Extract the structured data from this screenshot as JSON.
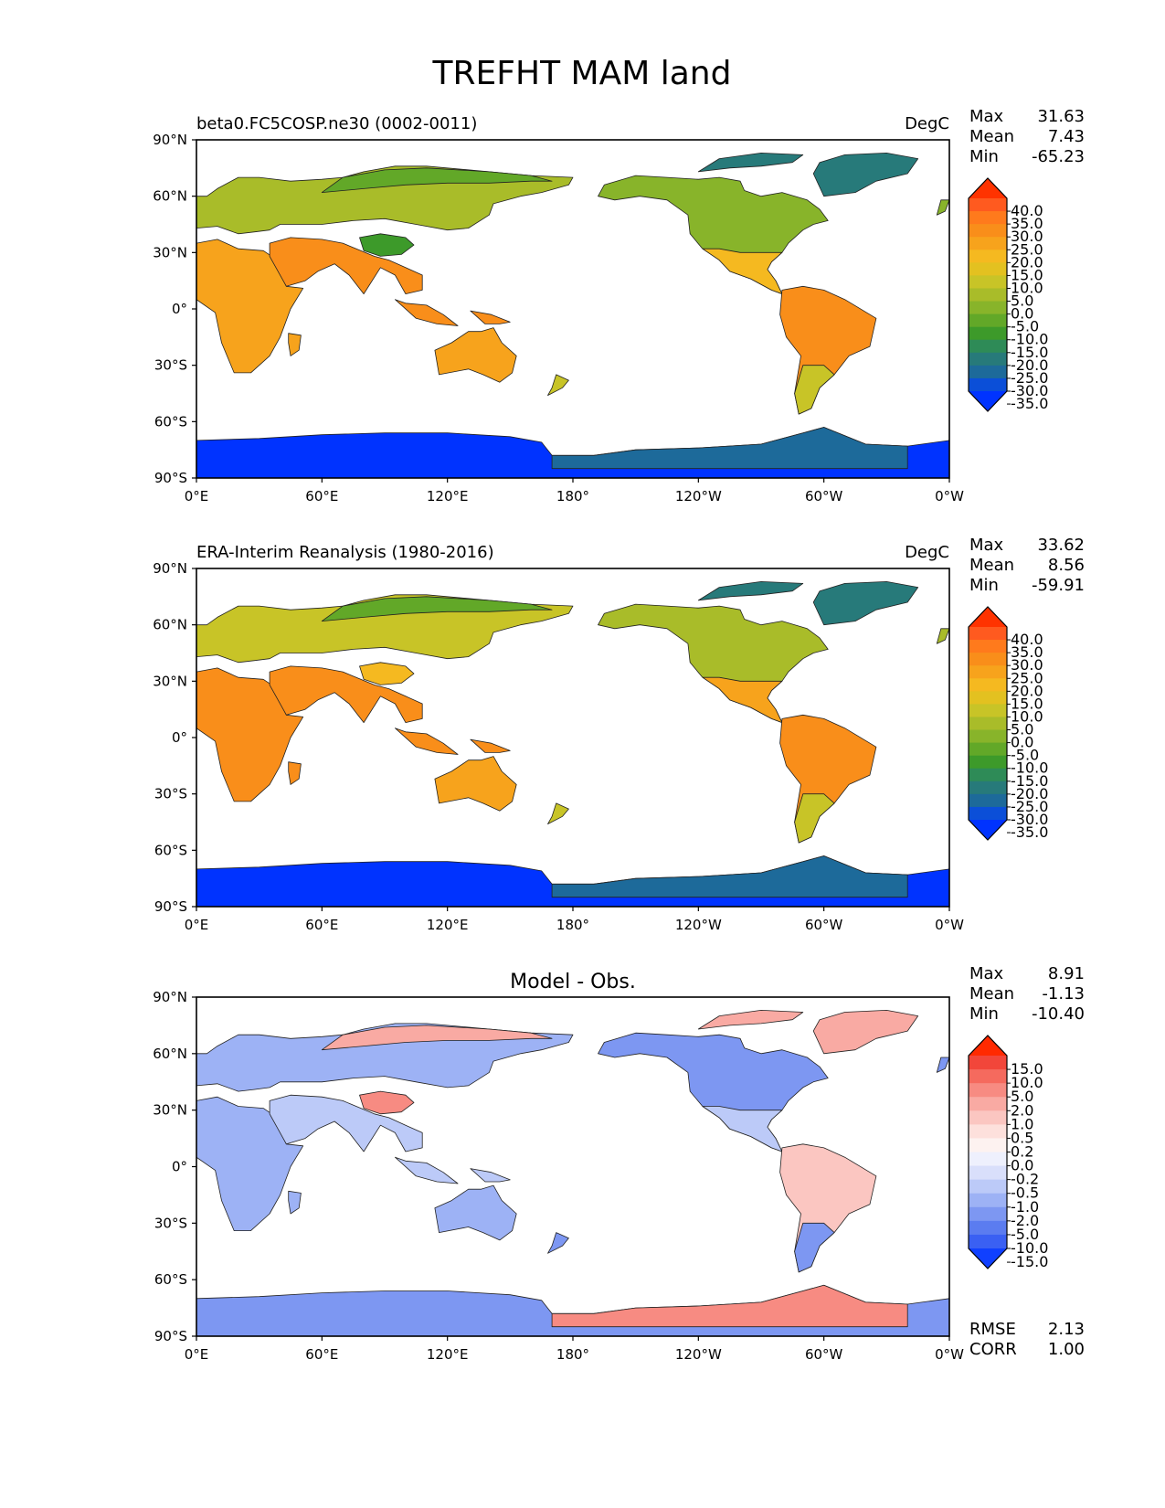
{
  "figure": {
    "title": "TREFHT MAM land"
  },
  "axes": {
    "lon_ticks": [
      "0°E",
      "60°E",
      "120°E",
      "180°",
      "120°W",
      "60°W",
      "0°W"
    ],
    "lat_ticks": [
      "90°N",
      "60°N",
      "30°N",
      "0°",
      "30°S",
      "60°S",
      "90°S"
    ]
  },
  "panels": [
    {
      "id": "model",
      "left_title": "beta0.FC5COSP.ne30 (0002-0011)",
      "center_title": "",
      "units": "DegC",
      "stats": [
        {
          "label": "Max",
          "value": "31.63"
        },
        {
          "label": "Mean",
          "value": "7.43"
        },
        {
          "label": "Min",
          "value": "-65.23"
        }
      ],
      "colorbar": {
        "labels": [
          "40.0",
          "35.0",
          "30.0",
          "25.0",
          "20.0",
          "15.0",
          "10.0",
          "5.0",
          "0.0",
          "-5.0",
          "-10.0",
          "-15.0",
          "-20.0",
          "-25.0",
          "-30.0",
          "-35.0"
        ],
        "colors": [
          "#ff3300",
          "#ff5a1f",
          "#ff7a1c",
          "#f98e1a",
          "#f7a31c",
          "#f5b920",
          "#e3c120",
          "#c8c427",
          "#a9bc29",
          "#88b42a",
          "#62a828",
          "#3d9a2a",
          "#2e8b57",
          "#277a7a",
          "#1d6a9a",
          "#0b4fd8",
          "#0033ff"
        ]
      },
      "footer_stats": []
    },
    {
      "id": "obs",
      "left_title": "ERA-Interim Reanalysis (1980-2016)",
      "center_title": "",
      "units": "DegC",
      "stats": [
        {
          "label": "Max",
          "value": "33.62"
        },
        {
          "label": "Mean",
          "value": "8.56"
        },
        {
          "label": "Min",
          "value": "-59.91"
        }
      ],
      "colorbar": {
        "labels": [
          "40.0",
          "35.0",
          "30.0",
          "25.0",
          "20.0",
          "15.0",
          "10.0",
          "5.0",
          "0.0",
          "-5.0",
          "-10.0",
          "-15.0",
          "-20.0",
          "-25.0",
          "-30.0",
          "-35.0"
        ],
        "colors": [
          "#ff3300",
          "#ff5a1f",
          "#ff7a1c",
          "#f98e1a",
          "#f7a31c",
          "#f5b920",
          "#e3c120",
          "#c8c427",
          "#a9bc29",
          "#88b42a",
          "#62a828",
          "#3d9a2a",
          "#2e8b57",
          "#277a7a",
          "#1d6a9a",
          "#0b4fd8",
          "#0033ff"
        ]
      },
      "footer_stats": []
    },
    {
      "id": "diff",
      "left_title": "",
      "center_title": "Model - Obs.",
      "units": "",
      "stats": [
        {
          "label": "Max",
          "value": "8.91"
        },
        {
          "label": "Mean",
          "value": "-1.13"
        },
        {
          "label": "Min",
          "value": "-10.40"
        }
      ],
      "colorbar": {
        "labels": [
          "15.0",
          "10.0",
          "5.0",
          "2.0",
          "1.0",
          "0.5",
          "0.2",
          "0.0",
          "-0.2",
          "-0.5",
          "-1.0",
          "-2.0",
          "-5.0",
          "-10.0",
          "-15.0"
        ],
        "colors": [
          "#ff2a00",
          "#f2463a",
          "#f56a5e",
          "#f78b82",
          "#f9aaa3",
          "#fbc6c1",
          "#fde0dc",
          "#fdf2f0",
          "#eef0fd",
          "#d9dffb",
          "#bccaf8",
          "#9db2f5",
          "#7d97f2",
          "#5b7cf0",
          "#3a60f3",
          "#1040ff"
        ]
      },
      "footer_stats": [
        {
          "label": "RMSE",
          "value": "2.13"
        },
        {
          "label": "CORR",
          "value": "1.00"
        }
      ]
    }
  ],
  "palette": {
    "model": {
      "eurasia": "#a9bc29",
      "siberia": "#62a828",
      "tibet": "#3d9a2a",
      "tropics": "#f98e1a",
      "africa": "#f7a31c",
      "southamerica": "#f98e1a",
      "patagonia": "#c8c427",
      "australia": "#f7a31c",
      "northamerica": "#88b42a",
      "us_south": "#f5b920",
      "greenland": "#277a7a",
      "antarctica": "#0033ff",
      "west_antarctica": "#1d6a9a"
    },
    "obs": {
      "eurasia": "#c8c427",
      "siberia": "#62a828",
      "tibet": "#f5b920",
      "tropics": "#f98e1a",
      "africa": "#f98e1a",
      "southamerica": "#f98e1a",
      "patagonia": "#c8c427",
      "australia": "#f7a31c",
      "northamerica": "#a9bc29",
      "us_south": "#f7a31c",
      "greenland": "#277a7a",
      "antarctica": "#0033ff",
      "west_antarctica": "#1d6a9a"
    },
    "diff": {
      "eurasia": "#9db2f5",
      "siberia": "#f9aaa3",
      "tibet": "#f78b82",
      "tropics": "#bccaf8",
      "africa": "#9db2f5",
      "southamerica": "#fbc6c1",
      "patagonia": "#7d97f2",
      "australia": "#9db2f5",
      "northamerica": "#7d97f2",
      "us_south": "#bccaf8",
      "greenland": "#f9aaa3",
      "antarctica": "#7d97f2",
      "west_antarctica": "#f78b82"
    }
  }
}
